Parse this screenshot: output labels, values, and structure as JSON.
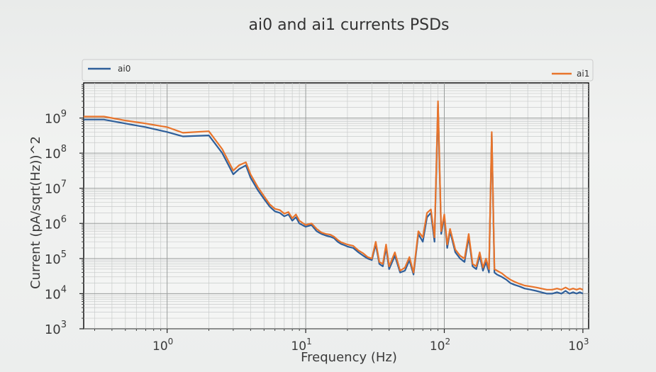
{
  "chart_data": {
    "type": "line",
    "title": "ai0 and ai1 currents PSDs",
    "xlabel": "Frequency (Hz)",
    "ylabel": "Current (pA/sqrt(Hz))^2",
    "x_scale": "log",
    "y_scale": "log",
    "xlim": [
      0.25,
      1100
    ],
    "ylim": [
      1000,
      10000000000
    ],
    "x_ticks": [
      {
        "value": 1,
        "base": "10",
        "exp": "0"
      },
      {
        "value": 10,
        "base": "10",
        "exp": "1"
      },
      {
        "value": 100,
        "base": "10",
        "exp": "2"
      },
      {
        "value": 1000,
        "base": "10",
        "exp": "3"
      }
    ],
    "y_ticks": [
      {
        "value": 1000,
        "base": "10",
        "exp": "3"
      },
      {
        "value": 10000,
        "base": "10",
        "exp": "4"
      },
      {
        "value": 100000,
        "base": "10",
        "exp": "5"
      },
      {
        "value": 1000000,
        "base": "10",
        "exp": "6"
      },
      {
        "value": 10000000,
        "base": "10",
        "exp": "7"
      },
      {
        "value": 100000000,
        "base": "10",
        "exp": "8"
      },
      {
        "value": 1000000000,
        "base": "10",
        "exp": "9"
      }
    ],
    "grid": true,
    "legends": [
      {
        "series": "ai0",
        "placement": "top-left"
      },
      {
        "series": "ai1",
        "placement": "top-right"
      }
    ],
    "series": [
      {
        "name": "ai0",
        "color": "#2f5f9a",
        "x": [
          0.25,
          0.35,
          0.5,
          0.7,
          1.0,
          1.3,
          2.0,
          2.5,
          3.0,
          3.3,
          3.7,
          4.0,
          4.5,
          5.0,
          5.5,
          6.0,
          6.5,
          7.0,
          7.5,
          8.0,
          8.5,
          9.0,
          10,
          11,
          12,
          13,
          14,
          15,
          16,
          17,
          18,
          19,
          20,
          22,
          24,
          26,
          28,
          30,
          32,
          34,
          36,
          38,
          40,
          44,
          48,
          52,
          56,
          60,
          65,
          70,
          75,
          80,
          85,
          90,
          95,
          100,
          105,
          110,
          120,
          130,
          140,
          150,
          160,
          170,
          180,
          190,
          200,
          210,
          220,
          230,
          240,
          260,
          280,
          300,
          320,
          350,
          380,
          420,
          460,
          500,
          550,
          600,
          650,
          700,
          750,
          800,
          850,
          900,
          950,
          1000
        ],
        "y": [
          900000000,
          900000000,
          700000000,
          550000000,
          400000000,
          300000000,
          320000000,
          100000000,
          25000000,
          35000000,
          45000000,
          20000000,
          9000000,
          5000000,
          3000000,
          2200000,
          2000000,
          1600000,
          1800000,
          1200000,
          1500000,
          1000000,
          800000,
          900000,
          600000,
          500000,
          450000,
          420000,
          380000,
          300000,
          260000,
          240000,
          220000,
          200000,
          150000,
          120000,
          100000,
          90000,
          250000,
          70000,
          60000,
          200000,
          50000,
          120000,
          40000,
          45000,
          90000,
          35000,
          500000,
          300000,
          1500000,
          2000000,
          300000,
          2500000000,
          500000,
          1500000,
          200000,
          600000,
          150000,
          100000,
          80000,
          400000,
          60000,
          50000,
          120000,
          45000,
          80000,
          40000,
          350000000,
          40000,
          35000,
          30000,
          25000,
          20000,
          18000,
          16000,
          14000,
          13000,
          12000,
          11000,
          10000,
          10000,
          11000,
          10000,
          12000,
          10000,
          11000,
          10000,
          11000,
          10000
        ]
      },
      {
        "name": "ai1",
        "color": "#e8742b",
        "x": [
          0.25,
          0.35,
          0.5,
          0.7,
          1.0,
          1.3,
          2.0,
          2.5,
          3.0,
          3.3,
          3.7,
          4.0,
          4.5,
          5.0,
          5.5,
          6.0,
          6.5,
          7.0,
          7.5,
          8.0,
          8.5,
          9.0,
          10,
          11,
          12,
          13,
          14,
          15,
          16,
          17,
          18,
          19,
          20,
          22,
          24,
          26,
          28,
          30,
          32,
          34,
          36,
          38,
          40,
          44,
          48,
          52,
          56,
          60,
          65,
          70,
          75,
          80,
          85,
          90,
          95,
          100,
          105,
          110,
          120,
          130,
          140,
          150,
          160,
          170,
          180,
          190,
          200,
          210,
          220,
          230,
          240,
          260,
          280,
          300,
          320,
          350,
          380,
          420,
          460,
          500,
          550,
          600,
          650,
          700,
          750,
          800,
          850,
          900,
          950,
          1000
        ],
        "y": [
          1100000000,
          1100000000,
          850000000,
          700000000,
          550000000,
          380000000,
          420000000,
          130000000,
          32000000,
          45000000,
          55000000,
          25000000,
          11000000,
          6000000,
          3500000,
          2600000,
          2400000,
          1900000,
          2100000,
          1400000,
          1800000,
          1200000,
          900000,
          1000000,
          700000,
          550000,
          500000,
          480000,
          420000,
          340000,
          290000,
          270000,
          250000,
          230000,
          170000,
          140000,
          110000,
          100000,
          300000,
          80000,
          70000,
          250000,
          60000,
          150000,
          45000,
          55000,
          110000,
          40000,
          600000,
          400000,
          2000000,
          2500000,
          400000,
          3000000000,
          600000,
          1800000,
          250000,
          700000,
          180000,
          120000,
          100000,
          500000,
          70000,
          60000,
          150000,
          55000,
          100000,
          50000,
          400000000,
          50000,
          45000,
          38000,
          30000,
          25000,
          22000,
          19000,
          17000,
          16000,
          15000,
          14000,
          13000,
          13000,
          14000,
          13000,
          15000,
          13000,
          14000,
          13000,
          14000,
          13000
        ]
      }
    ]
  }
}
